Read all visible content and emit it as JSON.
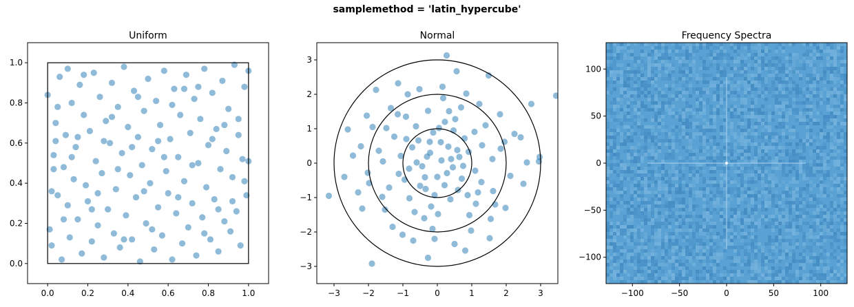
{
  "suptitle": "samplemethod = 'latin_hypercube'",
  "colors": {
    "point": "#1f77b4",
    "spectrum_base": "#5aa2d4",
    "spectrum_dark": "#2f78b3",
    "spectrum_light": "#86bde3"
  },
  "chart_data": [
    {
      "type": "scatter",
      "title": "Uniform",
      "xlabel": "",
      "ylabel": "",
      "xlim": [
        -0.1,
        1.1
      ],
      "ylim": [
        -0.1,
        1.1
      ],
      "xticks": [
        0.0,
        0.2,
        0.4,
        0.6,
        0.8,
        1.0
      ],
      "yticks": [
        0.0,
        0.2,
        0.4,
        0.6,
        0.8,
        1.0
      ],
      "xticklabels": [
        "0.0",
        "0.2",
        "0.4",
        "0.6",
        "0.8",
        "1.0"
      ],
      "yticklabels": [
        "0.0",
        "0.2",
        "0.4",
        "0.6",
        "0.8",
        "1.0"
      ],
      "grid": false,
      "overlay": {
        "shape": "unit-square",
        "corners": [
          [
            0,
            0
          ],
          [
            1,
            1
          ]
        ]
      },
      "points": [
        [
          0.0,
          0.84
        ],
        [
          0.01,
          0.17
        ],
        [
          0.02,
          0.36
        ],
        [
          0.02,
          0.09
        ],
        [
          0.03,
          0.54
        ],
        [
          0.04,
          0.61
        ],
        [
          0.04,
          0.7
        ],
        [
          0.05,
          0.34
        ],
        [
          0.06,
          0.93
        ],
        [
          0.07,
          0.02
        ],
        [
          0.08,
          0.48
        ],
        [
          0.09,
          0.64
        ],
        [
          0.1,
          0.97
        ],
        [
          0.1,
          0.29
        ],
        [
          0.11,
          0.13
        ],
        [
          0.12,
          0.8
        ],
        [
          0.13,
          0.42
        ],
        [
          0.14,
          0.58
        ],
        [
          0.15,
          0.22
        ],
        [
          0.16,
          0.89
        ],
        [
          0.17,
          0.05
        ],
        [
          0.18,
          0.74
        ],
        [
          0.19,
          0.39
        ],
        [
          0.2,
          0.31
        ],
        [
          0.21,
          0.66
        ],
        [
          0.22,
          0.11
        ],
        [
          0.23,
          0.95
        ],
        [
          0.24,
          0.51
        ],
        [
          0.25,
          0.19
        ],
        [
          0.26,
          0.83
        ],
        [
          0.27,
          0.45
        ],
        [
          0.28,
          0.03
        ],
        [
          0.29,
          0.71
        ],
        [
          0.3,
          0.27
        ],
        [
          0.31,
          0.6
        ],
        [
          0.32,
          0.9
        ],
        [
          0.33,
          0.15
        ],
        [
          0.34,
          0.37
        ],
        [
          0.35,
          0.78
        ],
        [
          0.36,
          0.08
        ],
        [
          0.37,
          0.55
        ],
        [
          0.38,
          0.98
        ],
        [
          0.39,
          0.24
        ],
        [
          0.4,
          0.68
        ],
        [
          0.41,
          0.44
        ],
        [
          0.42,
          0.12
        ],
        [
          0.43,
          0.86
        ],
        [
          0.44,
          0.33
        ],
        [
          0.45,
          0.63
        ],
        [
          0.46,
          0.01
        ],
        [
          0.47,
          0.49
        ],
        [
          0.48,
          0.76
        ],
        [
          0.49,
          0.2
        ],
        [
          0.5,
          0.92
        ],
        [
          0.51,
          0.4
        ],
        [
          0.52,
          0.57
        ],
        [
          0.53,
          0.07
        ],
        [
          0.54,
          0.81
        ],
        [
          0.55,
          0.28
        ],
        [
          0.56,
          0.69
        ],
        [
          0.57,
          0.14
        ],
        [
          0.58,
          0.96
        ],
        [
          0.59,
          0.46
        ],
        [
          0.6,
          0.35
        ],
        [
          0.61,
          0.62
        ],
        [
          0.62,
          0.02
        ],
        [
          0.63,
          0.87
        ],
        [
          0.64,
          0.25
        ],
        [
          0.65,
          0.53
        ],
        [
          0.66,
          0.74
        ],
        [
          0.67,
          0.1
        ],
        [
          0.68,
          0.41
        ],
        [
          0.69,
          0.94
        ],
        [
          0.7,
          0.18
        ],
        [
          0.71,
          0.65
        ],
        [
          0.72,
          0.3
        ],
        [
          0.73,
          0.82
        ],
        [
          0.74,
          0.04
        ],
        [
          0.75,
          0.5
        ],
        [
          0.76,
          0.72
        ],
        [
          0.77,
          0.23
        ],
        [
          0.78,
          0.97
        ],
        [
          0.79,
          0.38
        ],
        [
          0.8,
          0.59
        ],
        [
          0.81,
          0.12
        ],
        [
          0.82,
          0.85
        ],
        [
          0.83,
          0.32
        ],
        [
          0.84,
          0.67
        ],
        [
          0.85,
          0.06
        ],
        [
          0.86,
          0.47
        ],
        [
          0.87,
          0.91
        ],
        [
          0.88,
          0.21
        ],
        [
          0.89,
          0.56
        ],
        [
          0.9,
          0.77
        ],
        [
          0.91,
          0.16
        ],
        [
          0.92,
          0.43
        ],
        [
          0.93,
          0.99
        ],
        [
          0.94,
          0.26
        ],
        [
          0.95,
          0.64
        ],
        [
          0.96,
          0.09
        ],
        [
          0.97,
          0.52
        ],
        [
          0.98,
          0.88
        ],
        [
          0.99,
          0.34
        ],
        [
          1.0,
          0.51
        ],
        [
          1.0,
          0.96
        ],
        [
          0.05,
          0.78
        ],
        [
          0.15,
          0.63
        ],
        [
          0.25,
          0.35
        ],
        [
          0.35,
          0.47
        ],
        [
          0.45,
          0.83
        ],
        [
          0.55,
          0.61
        ],
        [
          0.65,
          0.33
        ],
        [
          0.75,
          0.88
        ],
        [
          0.85,
          0.27
        ],
        [
          0.95,
          0.72
        ],
        [
          0.12,
          0.53
        ],
        [
          0.22,
          0.27
        ],
        [
          0.32,
          0.73
        ],
        [
          0.42,
          0.58
        ],
        [
          0.52,
          0.17
        ],
        [
          0.62,
          0.79
        ],
        [
          0.72,
          0.49
        ],
        [
          0.82,
          0.62
        ],
        [
          0.92,
          0.31
        ],
        [
          0.08,
          0.22
        ],
        [
          0.18,
          0.94
        ],
        [
          0.28,
          0.61
        ],
        [
          0.38,
          0.12
        ],
        [
          0.48,
          0.36
        ],
        [
          0.58,
          0.53
        ],
        [
          0.68,
          0.87
        ],
        [
          0.78,
          0.15
        ],
        [
          0.88,
          0.69
        ],
        [
          0.98,
          0.41
        ],
        [
          0.03,
          0.47
        ]
      ]
    },
    {
      "type": "scatter",
      "title": "Normal",
      "xlabel": "",
      "ylabel": "",
      "xlim": [
        -3.5,
        3.5
      ],
      "ylim": [
        -3.5,
        3.5
      ],
      "xticks": [
        -3,
        -2,
        -1,
        0,
        1,
        2,
        3
      ],
      "yticks": [
        -3,
        -2,
        -1,
        0,
        1,
        2,
        3
      ],
      "xticklabels": [
        "−3",
        "−2",
        "−1",
        "0",
        "1",
        "2",
        "3"
      ],
      "yticklabels": [
        "−3",
        "−2",
        "−1",
        "0",
        "1",
        "2",
        "3"
      ],
      "grid": false,
      "overlay": {
        "shape": "circles",
        "radii": [
          1,
          2,
          3
        ]
      },
      "points": [
        [
          0.27,
          3.13
        ],
        [
          3.45,
          1.96
        ],
        [
          -3.15,
          -0.95
        ],
        [
          -1.9,
          -2.92
        ],
        [
          0.81,
          -2.54
        ],
        [
          -0.27,
          -2.75
        ],
        [
          2.73,
          1.72
        ],
        [
          -2.6,
          0.98
        ],
        [
          2.97,
          0.18
        ],
        [
          -1.78,
          2.13
        ],
        [
          1.49,
          2.55
        ],
        [
          -2.22,
          0.49
        ],
        [
          -2.18,
          -1.32
        ],
        [
          2.42,
          0.75
        ],
        [
          -1.14,
          2.32
        ],
        [
          0.56,
          2.67
        ],
        [
          -0.52,
          2.15
        ],
        [
          2.95,
          0.05
        ],
        [
          -2.7,
          -0.4
        ],
        [
          0.5,
          -2.35
        ],
        [
          1.52,
          -2.18
        ],
        [
          -0.7,
          -2.25
        ],
        [
          1.12,
          -1.18
        ],
        [
          -1.15,
          1.42
        ],
        [
          0.32,
          0.48
        ],
        [
          -0.21,
          0.3
        ],
        [
          0.45,
          -0.12
        ],
        [
          -0.36,
          -0.41
        ],
        [
          0.12,
          0.08
        ],
        [
          0.64,
          0.18
        ],
        [
          -0.55,
          0.66
        ],
        [
          0.21,
          -0.64
        ],
        [
          -0.82,
          -0.16
        ],
        [
          0.79,
          0.72
        ],
        [
          0.05,
          1.02
        ],
        [
          -0.08,
          -0.93
        ],
        [
          1.1,
          -0.22
        ],
        [
          -1.06,
          0.21
        ],
        [
          0.34,
          1.51
        ],
        [
          -1.4,
          -0.71
        ],
        [
          1.4,
          1.1
        ],
        [
          -0.38,
          -1.6
        ],
        [
          1.62,
          -0.81
        ],
        [
          -1.7,
          0.36
        ],
        [
          0.93,
          -1.51
        ],
        [
          -0.91,
          1.35
        ],
        [
          1.84,
          0.42
        ],
        [
          -1.52,
          -1.35
        ],
        [
          0.17,
          1.89
        ],
        [
          -0.14,
          -1.91
        ],
        [
          2.12,
          -0.37
        ],
        [
          -2.02,
          -0.28
        ],
        [
          1.22,
          1.72
        ],
        [
          -1.35,
          1.6
        ],
        [
          1.55,
          -1.62
        ],
        [
          -1.3,
          -1.85
        ],
        [
          0.47,
          0.95
        ],
        [
          -0.5,
          -0.66
        ],
        [
          0.71,
          -0.45
        ],
        [
          -0.73,
          0.46
        ],
        [
          0.28,
          -0.29
        ],
        [
          -0.3,
          0.19
        ],
        [
          0.91,
          0.33
        ],
        [
          -0.95,
          -0.48
        ],
        [
          0.52,
          1.28
        ],
        [
          -0.62,
          1.07
        ],
        [
          0.88,
          -0.93
        ],
        [
          -0.18,
          -1.26
        ],
        [
          1.3,
          0.52
        ],
        [
          -1.25,
          0.77
        ],
        [
          0.1,
          0.61
        ],
        [
          -0.44,
          -0.09
        ],
        [
          0.6,
          -0.78
        ],
        [
          -0.12,
          0.89
        ],
        [
          0.38,
          -1.05
        ],
        [
          -0.81,
          -1.02
        ],
        [
          1.08,
          0.91
        ],
        [
          -1.12,
          -0.31
        ],
        [
          1.28,
          -0.55
        ],
        [
          -0.27,
          1.52
        ],
        [
          0.69,
          1.62
        ],
        [
          -0.66,
          -1.42
        ],
        [
          1.6,
          0.12
        ],
        [
          -1.58,
          0.05
        ],
        [
          0.02,
          -1.48
        ],
        [
          1.82,
          1.42
        ],
        [
          -1.88,
          1.05
        ],
        [
          2.24,
          0.85
        ],
        [
          -2.3,
          -0.85
        ],
        [
          0.98,
          -1.96
        ],
        [
          -1.01,
          -2.08
        ],
        [
          1.98,
          -1.3
        ],
        [
          -2.05,
          1.38
        ],
        [
          0.15,
          2.22
        ],
        [
          -0.08,
          -2.2
        ],
        [
          2.5,
          -0.6
        ],
        [
          -2.45,
          0.22
        ],
        [
          2.6,
          0.02
        ],
        [
          -0.6,
          0.02
        ],
        [
          0.4,
          0.12
        ],
        [
          0.0,
          -0.4
        ],
        [
          -0.22,
          0.62
        ],
        [
          0.75,
          -0.08
        ],
        [
          -0.9,
          0.7
        ],
        [
          1.18,
          -0.85
        ],
        [
          0.58,
          0.38
        ],
        [
          -0.34,
          -0.75
        ],
        [
          0.22,
          1.2
        ],
        [
          -1.48,
          1.02
        ],
        [
          1.68,
          -1.2
        ],
        [
          -1.6,
          -0.98
        ],
        [
          0.84,
          2.02
        ],
        [
          -0.86,
          2.0
        ],
        [
          1.95,
          0.62
        ],
        [
          -1.98,
          -0.58
        ]
      ]
    },
    {
      "type": "heatmap",
      "title": "Frequency Spectra",
      "xlabel": "",
      "ylabel": "",
      "xlim": [
        -128,
        128
      ],
      "ylim": [
        -128,
        128
      ],
      "xticks": [
        -100,
        -50,
        0,
        50,
        100
      ],
      "yticks": [
        -100,
        -50,
        0,
        50,
        100
      ],
      "xticklabels": [
        "−100",
        "−50",
        "0",
        "50",
        "100"
      ],
      "yticklabels": [
        "−100",
        "−50",
        "0",
        "50",
        "100"
      ],
      "grid": false
    }
  ]
}
